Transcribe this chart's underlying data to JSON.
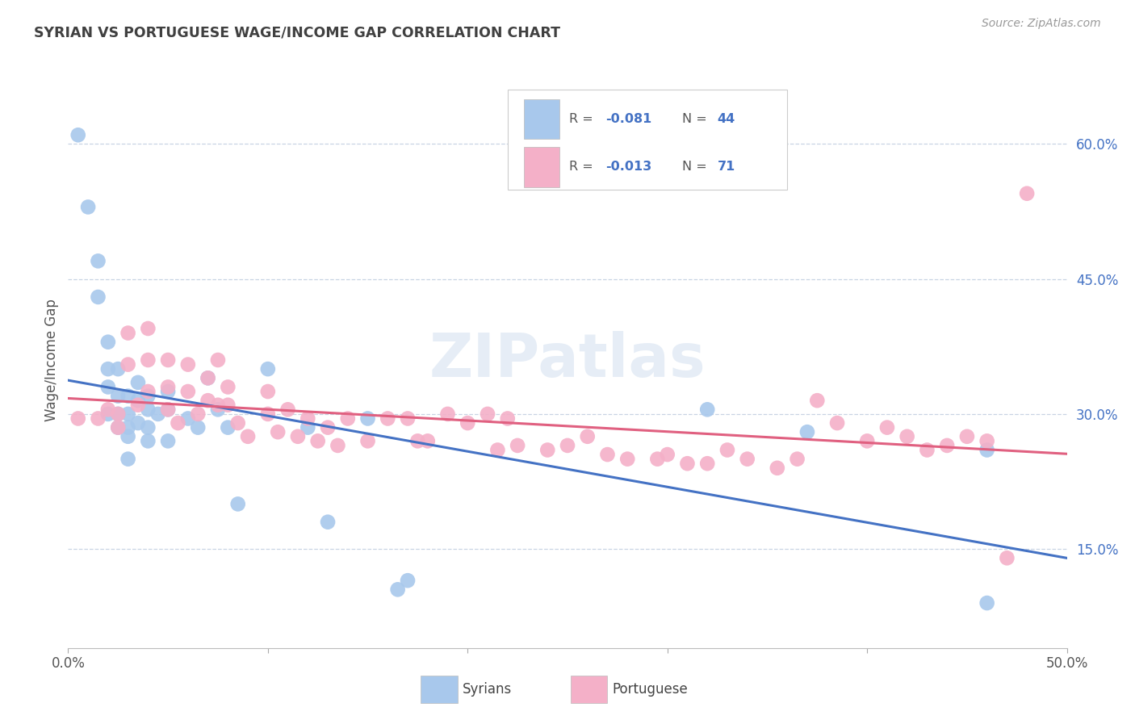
{
  "title": "SYRIAN VS PORTUGUESE WAGE/INCOME GAP CORRELATION CHART",
  "source": "Source: ZipAtlas.com",
  "ylabel": "Wage/Income Gap",
  "yticks": [
    "15.0%",
    "30.0%",
    "45.0%",
    "60.0%"
  ],
  "ytick_values": [
    0.15,
    0.3,
    0.45,
    0.6
  ],
  "xlim": [
    0.0,
    0.5
  ],
  "ylim": [
    0.04,
    0.68
  ],
  "legend_syrian_R": "-0.081",
  "legend_syrian_N": "44",
  "legend_portuguese_R": "-0.013",
  "legend_portuguese_N": "71",
  "syrian_color": "#a8c8ec",
  "portuguese_color": "#f4b0c8",
  "syrian_line_color": "#4472c4",
  "portuguese_line_color": "#e06080",
  "legend_text_color": "#4472c4",
  "title_color": "#404040",
  "watermark": "ZIPatlas",
  "background_color": "#ffffff",
  "grid_color": "#c8d4e4",
  "syrian_x": [
    0.005,
    0.01,
    0.015,
    0.015,
    0.02,
    0.02,
    0.02,
    0.02,
    0.025,
    0.025,
    0.025,
    0.025,
    0.03,
    0.03,
    0.03,
    0.03,
    0.03,
    0.035,
    0.035,
    0.035,
    0.04,
    0.04,
    0.04,
    0.04,
    0.045,
    0.05,
    0.05,
    0.05,
    0.06,
    0.065,
    0.07,
    0.075,
    0.08,
    0.085,
    0.1,
    0.12,
    0.13,
    0.15,
    0.165,
    0.17,
    0.32,
    0.37,
    0.46,
    0.46
  ],
  "syrian_y": [
    0.61,
    0.53,
    0.47,
    0.43,
    0.38,
    0.35,
    0.33,
    0.3,
    0.35,
    0.32,
    0.3,
    0.285,
    0.32,
    0.3,
    0.285,
    0.275,
    0.25,
    0.335,
    0.315,
    0.29,
    0.32,
    0.305,
    0.285,
    0.27,
    0.3,
    0.325,
    0.305,
    0.27,
    0.295,
    0.285,
    0.34,
    0.305,
    0.285,
    0.2,
    0.35,
    0.285,
    0.18,
    0.295,
    0.105,
    0.115,
    0.305,
    0.28,
    0.26,
    0.09
  ],
  "portuguese_x": [
    0.005,
    0.015,
    0.02,
    0.025,
    0.025,
    0.03,
    0.03,
    0.035,
    0.04,
    0.04,
    0.04,
    0.05,
    0.05,
    0.05,
    0.055,
    0.06,
    0.06,
    0.065,
    0.07,
    0.07,
    0.075,
    0.075,
    0.08,
    0.08,
    0.085,
    0.09,
    0.1,
    0.1,
    0.105,
    0.11,
    0.115,
    0.12,
    0.125,
    0.13,
    0.135,
    0.14,
    0.15,
    0.16,
    0.17,
    0.175,
    0.18,
    0.19,
    0.2,
    0.21,
    0.215,
    0.22,
    0.225,
    0.24,
    0.25,
    0.26,
    0.27,
    0.28,
    0.295,
    0.3,
    0.31,
    0.32,
    0.33,
    0.34,
    0.355,
    0.365,
    0.375,
    0.385,
    0.4,
    0.41,
    0.42,
    0.43,
    0.44,
    0.45,
    0.46,
    0.47,
    0.48
  ],
  "portuguese_y": [
    0.295,
    0.295,
    0.305,
    0.3,
    0.285,
    0.39,
    0.355,
    0.31,
    0.395,
    0.36,
    0.325,
    0.36,
    0.33,
    0.305,
    0.29,
    0.355,
    0.325,
    0.3,
    0.34,
    0.315,
    0.36,
    0.31,
    0.33,
    0.31,
    0.29,
    0.275,
    0.325,
    0.3,
    0.28,
    0.305,
    0.275,
    0.295,
    0.27,
    0.285,
    0.265,
    0.295,
    0.27,
    0.295,
    0.295,
    0.27,
    0.27,
    0.3,
    0.29,
    0.3,
    0.26,
    0.295,
    0.265,
    0.26,
    0.265,
    0.275,
    0.255,
    0.25,
    0.25,
    0.255,
    0.245,
    0.245,
    0.26,
    0.25,
    0.24,
    0.25,
    0.315,
    0.29,
    0.27,
    0.285,
    0.275,
    0.26,
    0.265,
    0.275,
    0.27,
    0.14,
    0.545
  ]
}
